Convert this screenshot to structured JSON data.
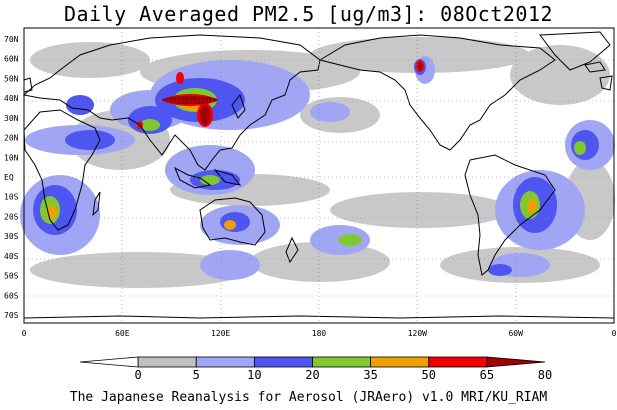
{
  "title": "Daily Averaged PM2.5 [ug/m3]: 08Oct2012",
  "footer": "The Japanese Reanalysis for Aerosol (JRAero) v1.0 MRI/KU_RIAM",
  "lat_labels": [
    "70N",
    "60N",
    "50N",
    "40N",
    "30N",
    "20N",
    "10N",
    "EQ",
    "10S",
    "20S",
    "30S",
    "40S",
    "50S",
    "60S",
    "70S"
  ],
  "lon_labels": [
    "0",
    "60E",
    "120E",
    "180",
    "120W",
    "60W",
    "0"
  ],
  "colorbar": {
    "labels": [
      "0",
      "5",
      "10",
      "20",
      "35",
      "50",
      "65",
      "80"
    ],
    "colors": [
      "#ffffff",
      "#c0c0c0",
      "#a0a6f4",
      "#4e55f0",
      "#80c832",
      "#f0a000",
      "#f00000",
      "#a00000"
    ]
  }
}
